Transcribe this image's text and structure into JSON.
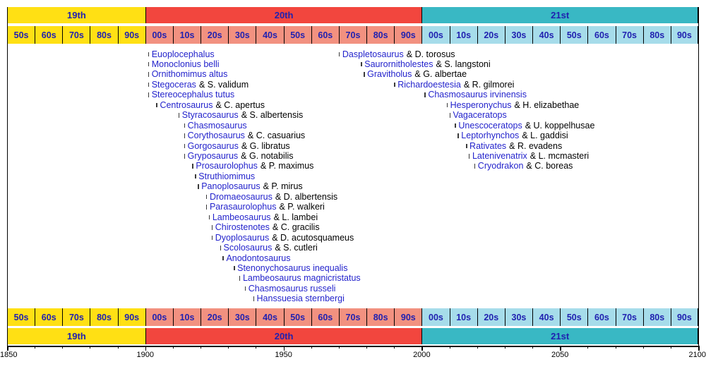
{
  "page": {
    "background": "#ffffff"
  },
  "colors": {
    "frame": "#000000",
    "link_blue": "#2323cc",
    "suffix_black": "#000000",
    "bar_label": "#2021b0",
    "note_tick": "#3b3b3b",
    "c19_bar": "#ffe014",
    "c19_decade": "#ffe014",
    "c20_bar": "#f2463e",
    "c20_decade": "#f29180",
    "c21_bar": "#39b8c4",
    "c21_decade": "#a6dcea"
  },
  "chart_data": {
    "type": "timeline",
    "x_range": [
      1850,
      2100
    ],
    "axis_major_ticks": [
      1850,
      1900,
      1950,
      2000,
      2050,
      2100
    ],
    "axis_minor_step": 10,
    "centuries": [
      {
        "label": "19th",
        "start": 1850,
        "end": 1900,
        "decades": [
          "50s",
          "60s",
          "70s",
          "80s",
          "90s"
        ]
      },
      {
        "label": "20th",
        "start": 1900,
        "end": 2000,
        "decades": [
          "00s",
          "10s",
          "20s",
          "30s",
          "40s",
          "50s",
          "60s",
          "70s",
          "80s",
          "90s"
        ]
      },
      {
        "label": "21st",
        "start": 2000,
        "end": 2100,
        "decades": [
          "00s",
          "10s",
          "20s",
          "30s",
          "40s",
          "50s",
          "60s",
          "70s",
          "80s",
          "90s"
        ]
      }
    ],
    "series": [
      {
        "name": "early-20th-century-taxa",
        "events": [
          {
            "label": "Euoplocephalus",
            "suffix": "",
            "year": 1901
          },
          {
            "label": "Monoclonius belli",
            "suffix": "",
            "year": 1901
          },
          {
            "label": "Ornithomimus altus",
            "suffix": "",
            "year": 1901
          },
          {
            "label": "Stegoceras",
            "suffix": "& S. validum",
            "year": 1901
          },
          {
            "label": "Stereocephalus tutus",
            "suffix": "",
            "year": 1901
          },
          {
            "label": "Centrosaurus",
            "suffix": "& C. apertus",
            "year": 1904
          },
          {
            "label": "Styracosaurus",
            "suffix": "& S. albertensis",
            "year": 1912
          },
          {
            "label": "Chasmosaurus",
            "suffix": "",
            "year": 1914
          },
          {
            "label": "Corythosaurus",
            "suffix": "& C. casuarius",
            "year": 1914
          },
          {
            "label": "Gorgosaurus",
            "suffix": "& G. libratus",
            "year": 1914
          },
          {
            "label": "Gryposaurus",
            "suffix": "& G. notabilis",
            "year": 1914
          },
          {
            "label": "Prosaurolophus",
            "suffix": "& P. maximus",
            "year": 1917
          },
          {
            "label": "Struthiomimus",
            "suffix": "",
            "year": 1918
          },
          {
            "label": "Panoplosaurus",
            "suffix": "& P. mirus",
            "year": 1919
          },
          {
            "label": "Dromaeosaurus",
            "suffix": "& D. albertensis",
            "year": 1922
          },
          {
            "label": "Parasaurolophus",
            "suffix": "& P. walkeri",
            "year": 1922
          },
          {
            "label": "Lambeosaurus",
            "suffix": "& L. lambei",
            "year": 1923
          },
          {
            "label": "Chirostenotes",
            "suffix": "& C. gracilis",
            "year": 1924
          },
          {
            "label": "Dyoplosaurus",
            "suffix": "& D. acutosquameus",
            "year": 1924
          },
          {
            "label": "Scolosaurus",
            "suffix": "& S. cutleri",
            "year": 1927
          },
          {
            "label": "Anodontosaurus",
            "suffix": "",
            "year": 1928
          },
          {
            "label": "Stenonychosaurus inequalis",
            "suffix": "",
            "year": 1932
          },
          {
            "label": "Lambeosaurus magnicristatus",
            "suffix": "",
            "year": 1934
          },
          {
            "label": "Chasmosaurus russeli",
            "suffix": "",
            "year": 1936
          },
          {
            "label": "Hanssuesia sternbergi",
            "suffix": "",
            "year": 1939
          }
        ]
      },
      {
        "name": "late-20th-and-21st-century-taxa",
        "events": [
          {
            "label": "Daspletosaurus",
            "suffix": "& D. torosus",
            "year": 1970
          },
          {
            "label": "Saurornitholestes",
            "suffix": "& S. langstoni",
            "year": 1978
          },
          {
            "label": "Gravitholus",
            "suffix": "& G. albertae",
            "year": 1979
          },
          {
            "label": "Richardoestesia",
            "suffix": "& R. gilmorei",
            "year": 1990
          },
          {
            "label": "Chasmosaurus irvinensis",
            "suffix": "",
            "year": 2001
          },
          {
            "label": "Hesperonychus",
            "suffix": "& H. elizabethae",
            "year": 2009
          },
          {
            "label": "Vagaceratops",
            "suffix": "",
            "year": 2010
          },
          {
            "label": "Unescoceratops",
            "suffix": "& U. koppelhusae",
            "year": 2012
          },
          {
            "label": "Leptorhynchos",
            "suffix": "& L. gaddisi",
            "year": 2013
          },
          {
            "label": "Rativates",
            "suffix": "& R. evadens",
            "year": 2016
          },
          {
            "label": "Latenivenatrix",
            "suffix": "& L. mcmasteri",
            "year": 2017
          },
          {
            "label": "Cryodrakon",
            "suffix": "& C. boreas",
            "year": 2019
          }
        ]
      }
    ]
  }
}
